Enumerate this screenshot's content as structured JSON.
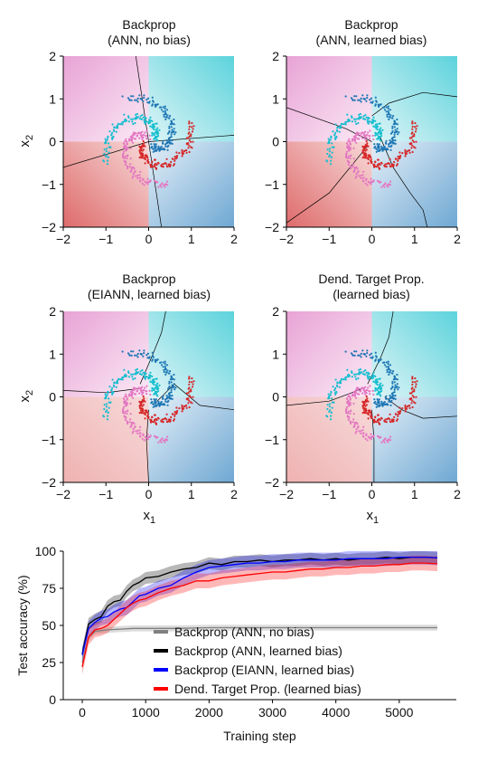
{
  "panels": [
    {
      "title_line1": "Backprop",
      "title_line2": "(ANN, no bias)",
      "boundary": "nobias"
    },
    {
      "title_line1": "Backprop",
      "title_line2": "(ANN, learned bias)",
      "boundary": "ann"
    },
    {
      "title_line1": "Backprop",
      "title_line2": "(EIANN, learned bias)",
      "boundary": "eiann"
    },
    {
      "title_line1": "Dend. Target Prop.",
      "title_line2": "(learned bias)",
      "boundary": "dtp"
    }
  ],
  "scatter_axes": {
    "xlabel": "x",
    "xlabel_sub": "1",
    "ylabel": "x",
    "ylabel_sub": "2",
    "xlim": [
      -2,
      2
    ],
    "ylim": [
      -2,
      2
    ],
    "ticks": [
      -2,
      -1,
      0,
      1,
      2
    ],
    "tick_labels": [
      "−2",
      "−1",
      "0",
      "1",
      "2"
    ]
  },
  "class_colors": {
    "red": "#d62728",
    "pink": "#e377c2",
    "cyan": "#17becf",
    "blue": "#1f77b4"
  },
  "chart_data": {
    "type": "line",
    "xlabel": "Training step",
    "ylabel": "Test accuracy (%)",
    "xlim": [
      -300,
      5900
    ],
    "ylim": [
      0,
      100
    ],
    "xticks": [
      0,
      1000,
      2000,
      3000,
      4000,
      5000
    ],
    "yticks": [
      0,
      25,
      50,
      75,
      100
    ],
    "legend_position": "center-bottom",
    "series": [
      {
        "name": "Backprop (ANN, no bias)",
        "color": "#808080",
        "x": [
          0,
          100,
          200,
          300,
          400,
          600,
          800,
          1000,
          1500,
          2000,
          3000,
          4000,
          5000,
          5600
        ],
        "values": [
          25,
          42,
          46,
          46.5,
          47,
          47.5,
          48,
          48,
          48,
          48.5,
          48.5,
          48.5,
          48.5,
          48.5
        ],
        "band": 2
      },
      {
        "name": "Backprop (ANN, learned bias)",
        "color": "#000000",
        "x": [
          0,
          100,
          200,
          300,
          400,
          500,
          600,
          700,
          800,
          900,
          1000,
          1200,
          1400,
          1600,
          1800,
          2000,
          2200,
          2400,
          2600,
          2800,
          3000,
          3200,
          3400,
          3600,
          3800,
          4000,
          4200,
          4400,
          4600,
          4800,
          5000,
          5200,
          5400,
          5600
        ],
        "values": [
          31,
          51,
          54,
          56,
          63,
          66,
          67,
          73,
          77,
          79,
          82,
          83,
          86,
          88,
          89,
          92,
          91,
          93,
          93,
          94,
          93,
          94,
          94,
          95,
          94,
          95,
          94,
          95,
          95,
          96,
          95,
          96,
          96,
          95.5
        ],
        "band": 4
      },
      {
        "name": "Backprop (EIANN, learned bias)",
        "color": "#0000ff",
        "x": [
          0,
          100,
          200,
          300,
          400,
          500,
          600,
          700,
          800,
          900,
          1000,
          1200,
          1400,
          1600,
          1800,
          2000,
          2200,
          2400,
          2600,
          2800,
          3000,
          3200,
          3400,
          3600,
          3800,
          4000,
          4200,
          4400,
          4600,
          4800,
          5000,
          5200,
          5400,
          5600
        ],
        "values": [
          30,
          48,
          52,
          55,
          56,
          59,
          61,
          62,
          66,
          70,
          71,
          75,
          77,
          82,
          86,
          89,
          90,
          91,
          92,
          92,
          93,
          93,
          94,
          94,
          94,
          94,
          95,
          95,
          95,
          95,
          96,
          96,
          96,
          95.5
        ],
        "band": 5
      },
      {
        "name": "Dend. Target Prop. (learned bias)",
        "color": "#ff0000",
        "x": [
          0,
          100,
          200,
          300,
          400,
          500,
          600,
          700,
          800,
          900,
          1000,
          1200,
          1400,
          1600,
          1800,
          2000,
          2200,
          2400,
          2600,
          2800,
          3000,
          3200,
          3400,
          3600,
          3800,
          4000,
          4200,
          4400,
          4600,
          4800,
          5000,
          5200,
          5400,
          5600
        ],
        "values": [
          22,
          42,
          47,
          48,
          50,
          54,
          58,
          62,
          65,
          67,
          68,
          72,
          75,
          77,
          80,
          80,
          82,
          83,
          84,
          85,
          86,
          86,
          87,
          88,
          88,
          89,
          89,
          90,
          90,
          91,
          91,
          92,
          92,
          91.5
        ],
        "band": 5
      }
    ]
  }
}
